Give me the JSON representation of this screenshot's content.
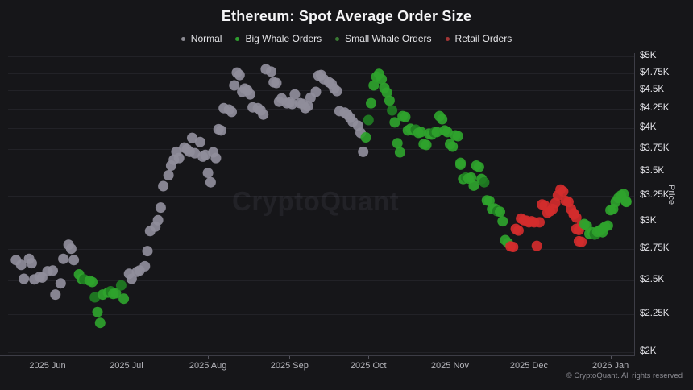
{
  "title": "Ethereum: Spot Average Order Size",
  "watermark": "CryptoQuant",
  "copyright": "© CryptoQuant. All rights reserved",
  "colors": {
    "background": "#161619",
    "grid": "#222227",
    "axis": "#3d3d46",
    "normal": "#908e9b",
    "big_whale": "#2fa32c",
    "small_whale": "#1f7d22",
    "retail": "#d22c2c"
  },
  "legend": {
    "items": [
      {
        "label": "Normal",
        "color": "#8b8a92",
        "key": "normal"
      },
      {
        "label": "Big Whale Orders",
        "color": "#2f9e2f",
        "key": "big_whale"
      },
      {
        "label": "Small Whale Orders",
        "color": "#3a7a33",
        "key": "small_whale"
      },
      {
        "label": "Retail Orders",
        "color": "#a33636",
        "key": "retail"
      }
    ]
  },
  "x_axis": {
    "min": "2025-05-17",
    "max": "2026-01-10",
    "ticks": [
      {
        "label": "2025 Jun",
        "date": "2025-06-01"
      },
      {
        "label": "2025 Jul",
        "date": "2025-07-01"
      },
      {
        "label": "2025 Aug",
        "date": "2025-08-01"
      },
      {
        "label": "2025 Sep",
        "date": "2025-09-01"
      },
      {
        "label": "2025 Oct",
        "date": "2025-10-01"
      },
      {
        "label": "2025 Nov",
        "date": "2025-11-01"
      },
      {
        "label": "2025 Dec",
        "date": "2025-12-01"
      },
      {
        "label": "2026 Jan",
        "date": "2026-01-01"
      }
    ]
  },
  "y_axis": {
    "title": "Price",
    "scale": "log",
    "min": 2000,
    "max": 5000,
    "ticks": [
      {
        "label": "$5K",
        "value": 5000
      },
      {
        "label": "$4.75K",
        "value": 4750
      },
      {
        "label": "$4.5K",
        "value": 4500
      },
      {
        "label": "$4.25K",
        "value": 4250
      },
      {
        "label": "$4K",
        "value": 4000
      },
      {
        "label": "$3.75K",
        "value": 3750
      },
      {
        "label": "$3.5K",
        "value": 3500
      },
      {
        "label": "$3.25K",
        "value": 3250
      },
      {
        "label": "$3K",
        "value": 3000
      },
      {
        "label": "$2.75K",
        "value": 2750
      },
      {
        "label": "$2.5K",
        "value": 2500
      },
      {
        "label": "$2.25K",
        "value": 2250
      },
      {
        "label": "$2K",
        "value": 2000
      }
    ]
  },
  "chart_data": {
    "type": "scatter",
    "title": "Ethereum: Spot Average Order Size",
    "ylabel": "Price",
    "point_format": [
      "date",
      "price_usd",
      "category_code"
    ],
    "category_codes": {
      "N": "normal",
      "B": "big_whale",
      "S": "small_whale",
      "R": "retail"
    },
    "points": [
      [
        "2025-05-20",
        2660,
        "N"
      ],
      [
        "2025-05-22",
        2620,
        "N"
      ],
      [
        "2025-05-23",
        2510,
        "N"
      ],
      [
        "2025-05-25",
        2670,
        "N"
      ],
      [
        "2025-05-26",
        2635,
        "N"
      ],
      [
        "2025-05-27",
        2505,
        "N"
      ],
      [
        "2025-05-29",
        2525,
        "N"
      ],
      [
        "2025-05-30",
        2520,
        "N"
      ],
      [
        "2025-06-01",
        2570,
        "N"
      ],
      [
        "2025-06-03",
        2575,
        "N"
      ],
      [
        "2025-06-04",
        2390,
        "N"
      ],
      [
        "2025-06-06",
        2475,
        "N"
      ],
      [
        "2025-06-07",
        2670,
        "N"
      ],
      [
        "2025-06-09",
        2790,
        "N"
      ],
      [
        "2025-06-10",
        2755,
        "N"
      ],
      [
        "2025-06-11",
        2660,
        "N"
      ],
      [
        "2025-06-13",
        2545,
        "B"
      ],
      [
        "2025-06-14",
        2510,
        "B"
      ],
      [
        "2025-06-15",
        2505,
        "S"
      ],
      [
        "2025-06-17",
        2495,
        "B"
      ],
      [
        "2025-06-18",
        2485,
        "B"
      ],
      [
        "2025-06-19",
        2370,
        "S"
      ],
      [
        "2025-06-20",
        2265,
        "B"
      ],
      [
        "2025-06-21",
        2190,
        "B"
      ],
      [
        "2025-06-22",
        2390,
        "B"
      ],
      [
        "2025-06-24",
        2405,
        "B"
      ],
      [
        "2025-06-25",
        2415,
        "S"
      ],
      [
        "2025-06-26",
        2395,
        "B"
      ],
      [
        "2025-06-27",
        2400,
        "B"
      ],
      [
        "2025-06-29",
        2460,
        "S"
      ],
      [
        "2025-06-30",
        2360,
        "B"
      ],
      [
        "2025-07-02",
        2550,
        "N"
      ],
      [
        "2025-07-03",
        2510,
        "N"
      ],
      [
        "2025-07-05",
        2565,
        "N"
      ],
      [
        "2025-07-06",
        2575,
        "N"
      ],
      [
        "2025-07-08",
        2610,
        "N"
      ],
      [
        "2025-07-09",
        2735,
        "N"
      ],
      [
        "2025-07-10",
        2910,
        "N"
      ],
      [
        "2025-07-12",
        2950,
        "N"
      ],
      [
        "2025-07-13",
        3010,
        "N"
      ],
      [
        "2025-07-14",
        3130,
        "N"
      ],
      [
        "2025-07-15",
        3345,
        "N"
      ],
      [
        "2025-07-17",
        3460,
        "N"
      ],
      [
        "2025-07-18",
        3565,
        "N"
      ],
      [
        "2025-07-19",
        3630,
        "N"
      ],
      [
        "2025-07-20",
        3720,
        "N"
      ],
      [
        "2025-07-21",
        3650,
        "N"
      ],
      [
        "2025-07-23",
        3770,
        "N"
      ],
      [
        "2025-07-24",
        3750,
        "N"
      ],
      [
        "2025-07-25",
        3720,
        "N"
      ],
      [
        "2025-07-26",
        3885,
        "N"
      ],
      [
        "2025-07-27",
        3705,
        "N"
      ],
      [
        "2025-07-29",
        3835,
        "N"
      ],
      [
        "2025-07-30",
        3665,
        "N"
      ],
      [
        "2025-07-31",
        3685,
        "N"
      ],
      [
        "2025-08-01",
        3485,
        "N"
      ],
      [
        "2025-08-02",
        3385,
        "N"
      ],
      [
        "2025-08-03",
        3715,
        "N"
      ],
      [
        "2025-08-04",
        3650,
        "N"
      ],
      [
        "2025-08-05",
        3990,
        "N"
      ],
      [
        "2025-08-06",
        3975,
        "N"
      ],
      [
        "2025-08-07",
        4260,
        "N"
      ],
      [
        "2025-08-09",
        4240,
        "N"
      ],
      [
        "2025-08-10",
        4210,
        "N"
      ],
      [
        "2025-08-11",
        4570,
        "N"
      ],
      [
        "2025-08-12",
        4755,
        "N"
      ],
      [
        "2025-08-13",
        4720,
        "N"
      ],
      [
        "2025-08-14",
        4480,
        "N"
      ],
      [
        "2025-08-15",
        4525,
        "N"
      ],
      [
        "2025-08-16",
        4500,
        "N"
      ],
      [
        "2025-08-17",
        4445,
        "N"
      ],
      [
        "2025-08-18",
        4270,
        "N"
      ],
      [
        "2025-08-20",
        4260,
        "N"
      ],
      [
        "2025-08-21",
        4230,
        "N"
      ],
      [
        "2025-08-22",
        4175,
        "N"
      ],
      [
        "2025-08-23",
        4805,
        "N"
      ],
      [
        "2025-08-25",
        4770,
        "N"
      ],
      [
        "2025-08-26",
        4615,
        "N"
      ],
      [
        "2025-08-27",
        4605,
        "N"
      ],
      [
        "2025-08-28",
        4345,
        "N"
      ],
      [
        "2025-08-29",
        4390,
        "N"
      ],
      [
        "2025-08-31",
        4325,
        "N"
      ],
      [
        "2025-09-01",
        4335,
        "N"
      ],
      [
        "2025-09-02",
        4315,
        "N"
      ],
      [
        "2025-09-03",
        4445,
        "N"
      ],
      [
        "2025-09-05",
        4325,
        "N"
      ],
      [
        "2025-09-06",
        4315,
        "N"
      ],
      [
        "2025-09-07",
        4260,
        "N"
      ],
      [
        "2025-09-08",
        4285,
        "N"
      ],
      [
        "2025-09-09",
        4400,
        "N"
      ],
      [
        "2025-09-11",
        4480,
        "N"
      ],
      [
        "2025-09-12",
        4710,
        "N"
      ],
      [
        "2025-09-13",
        4720,
        "N"
      ],
      [
        "2025-09-14",
        4660,
        "N"
      ],
      [
        "2025-09-16",
        4615,
        "N"
      ],
      [
        "2025-09-17",
        4590,
        "N"
      ],
      [
        "2025-09-18",
        4525,
        "N"
      ],
      [
        "2025-09-19",
        4490,
        "N"
      ],
      [
        "2025-09-20",
        4220,
        "N"
      ],
      [
        "2025-09-22",
        4200,
        "N"
      ],
      [
        "2025-09-23",
        4175,
        "N"
      ],
      [
        "2025-09-24",
        4135,
        "N"
      ],
      [
        "2025-09-25",
        4085,
        "N"
      ],
      [
        "2025-09-27",
        4035,
        "N"
      ],
      [
        "2025-09-28",
        3945,
        "N"
      ],
      [
        "2025-09-29",
        3720,
        "N"
      ],
      [
        "2025-09-30",
        3890,
        "B"
      ],
      [
        "2025-10-01",
        4105,
        "S"
      ],
      [
        "2025-10-02",
        4325,
        "B"
      ],
      [
        "2025-10-03",
        4570,
        "B"
      ],
      [
        "2025-10-04",
        4695,
        "B"
      ],
      [
        "2025-10-05",
        4735,
        "B"
      ],
      [
        "2025-10-06",
        4660,
        "B"
      ],
      [
        "2025-10-07",
        4535,
        "B"
      ],
      [
        "2025-10-08",
        4470,
        "B"
      ],
      [
        "2025-10-09",
        4360,
        "B"
      ],
      [
        "2025-10-10",
        4230,
        "S"
      ],
      [
        "2025-10-11",
        4075,
        "B"
      ],
      [
        "2025-10-12",
        3820,
        "B"
      ],
      [
        "2025-10-13",
        3715,
        "B"
      ],
      [
        "2025-10-14",
        4155,
        "B"
      ],
      [
        "2025-10-15",
        4145,
        "B"
      ],
      [
        "2025-10-16",
        3975,
        "B"
      ],
      [
        "2025-10-17",
        3995,
        "B"
      ],
      [
        "2025-10-18",
        3975,
        "B"
      ],
      [
        "2025-10-19",
        3985,
        "S"
      ],
      [
        "2025-10-20",
        3945,
        "B"
      ],
      [
        "2025-10-21",
        3955,
        "B"
      ],
      [
        "2025-10-22",
        3810,
        "B"
      ],
      [
        "2025-10-23",
        3800,
        "B"
      ],
      [
        "2025-10-24",
        3935,
        "B"
      ],
      [
        "2025-10-25",
        3925,
        "B"
      ],
      [
        "2025-10-26",
        3950,
        "S"
      ],
      [
        "2025-10-27",
        3955,
        "B"
      ],
      [
        "2025-10-28",
        4155,
        "B"
      ],
      [
        "2025-10-29",
        4115,
        "B"
      ],
      [
        "2025-10-30",
        3975,
        "B"
      ],
      [
        "2025-10-31",
        3955,
        "B"
      ],
      [
        "2025-11-01",
        3810,
        "B"
      ],
      [
        "2025-11-02",
        3780,
        "B"
      ],
      [
        "2025-11-03",
        3915,
        "B"
      ],
      [
        "2025-11-04",
        3905,
        "B"
      ],
      [
        "2025-11-05",
        3595,
        "B"
      ],
      [
        "2025-11-05",
        3575,
        "B"
      ],
      [
        "2025-11-06",
        3420,
        "B"
      ],
      [
        "2025-11-07",
        3435,
        "S"
      ],
      [
        "2025-11-08",
        3425,
        "B"
      ],
      [
        "2025-11-09",
        3435,
        "B"
      ],
      [
        "2025-11-10",
        3350,
        "B"
      ],
      [
        "2025-11-11",
        3565,
        "B"
      ],
      [
        "2025-11-12",
        3550,
        "B"
      ],
      [
        "2025-11-13",
        3420,
        "B"
      ],
      [
        "2025-11-14",
        3385,
        "S"
      ],
      [
        "2025-11-15",
        3200,
        "B"
      ],
      [
        "2025-11-16",
        3195,
        "B"
      ],
      [
        "2025-11-17",
        3115,
        "B"
      ],
      [
        "2025-11-18",
        3120,
        "B"
      ],
      [
        "2025-11-19",
        3095,
        "S"
      ],
      [
        "2025-11-20",
        3090,
        "B"
      ],
      [
        "2025-11-21",
        3000,
        "B"
      ],
      [
        "2025-11-22",
        2830,
        "B"
      ],
      [
        "2025-11-23",
        2805,
        "B"
      ],
      [
        "2025-11-24",
        2775,
        "R"
      ],
      [
        "2025-11-25",
        2770,
        "R"
      ],
      [
        "2025-11-26",
        2930,
        "R"
      ],
      [
        "2025-11-27",
        2915,
        "R"
      ],
      [
        "2025-11-28",
        3025,
        "R"
      ],
      [
        "2025-11-29",
        3010,
        "R"
      ],
      [
        "2025-11-30",
        3005,
        "R"
      ],
      [
        "2025-12-01",
        2990,
        "R"
      ],
      [
        "2025-12-02",
        3000,
        "R"
      ],
      [
        "2025-12-03",
        2990,
        "R"
      ],
      [
        "2025-12-04",
        2780,
        "R"
      ],
      [
        "2025-12-05",
        2990,
        "R"
      ],
      [
        "2025-12-06",
        3160,
        "R"
      ],
      [
        "2025-12-07",
        3150,
        "R"
      ],
      [
        "2025-12-08",
        3080,
        "R"
      ],
      [
        "2025-12-09",
        3095,
        "R"
      ],
      [
        "2025-12-10",
        3115,
        "R"
      ],
      [
        "2025-12-11",
        3175,
        "R"
      ],
      [
        "2025-12-12",
        3250,
        "R"
      ],
      [
        "2025-12-13",
        3310,
        "R"
      ],
      [
        "2025-12-14",
        3290,
        "R"
      ],
      [
        "2025-12-15",
        3195,
        "R"
      ],
      [
        "2025-12-16",
        3185,
        "R"
      ],
      [
        "2025-12-17",
        3115,
        "R"
      ],
      [
        "2025-12-18",
        3075,
        "R"
      ],
      [
        "2025-12-18",
        3065,
        "R"
      ],
      [
        "2025-12-19",
        3035,
        "R"
      ],
      [
        "2025-12-19",
        2930,
        "R"
      ],
      [
        "2025-12-20",
        2920,
        "R"
      ],
      [
        "2025-12-20",
        2820,
        "R"
      ],
      [
        "2025-12-21",
        2815,
        "R"
      ],
      [
        "2025-12-21",
        2960,
        "R"
      ],
      [
        "2025-12-22",
        2965,
        "R"
      ],
      [
        "2025-12-22",
        2975,
        "B"
      ],
      [
        "2025-12-23",
        2960,
        "B"
      ],
      [
        "2025-12-24",
        2885,
        "B"
      ],
      [
        "2025-12-25",
        2900,
        "B"
      ],
      [
        "2025-12-26",
        2880,
        "B"
      ],
      [
        "2025-12-26",
        2885,
        "S"
      ],
      [
        "2025-12-27",
        2905,
        "B"
      ],
      [
        "2025-12-28",
        2915,
        "B"
      ],
      [
        "2025-12-29",
        2900,
        "B"
      ],
      [
        "2025-12-29",
        2935,
        "B"
      ],
      [
        "2025-12-30",
        2950,
        "B"
      ],
      [
        "2025-12-31",
        2960,
        "B"
      ],
      [
        "2026-01-01",
        3105,
        "B"
      ],
      [
        "2026-01-02",
        3115,
        "B"
      ],
      [
        "2026-01-03",
        3185,
        "B"
      ],
      [
        "2026-01-04",
        3225,
        "B"
      ],
      [
        "2026-01-05",
        3250,
        "B"
      ],
      [
        "2026-01-06",
        3265,
        "B"
      ],
      [
        "2026-01-07",
        3190,
        "B"
      ],
      [
        "2026-01-07",
        3185,
        "B"
      ]
    ]
  }
}
